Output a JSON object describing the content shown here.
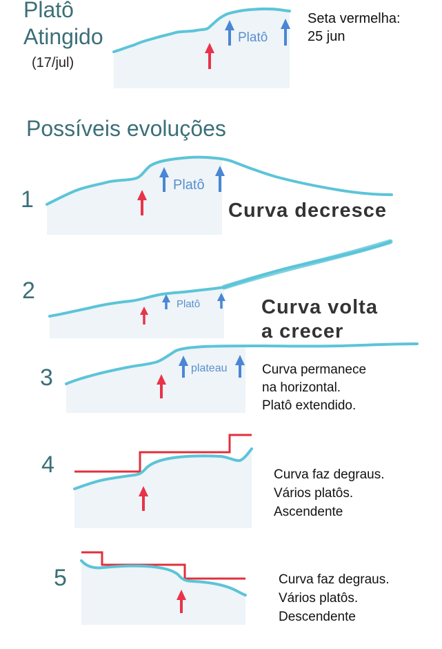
{
  "top": {
    "title_line1": "Platô",
    "title_line2": "Atingido",
    "date": "(17/jul)",
    "legend_line1": "Seta vermelha:",
    "legend_line2": "25 jun",
    "curve_label": "Platô"
  },
  "heading": "Possíveis evoluções",
  "evolutions": [
    {
      "number": "1",
      "label": "Platô",
      "desc_line1": "Curva decresce"
    },
    {
      "number": "2",
      "label": "Platô",
      "desc_line1": "Curva volta",
      "desc_line2": "a crecer"
    },
    {
      "number": "3",
      "label": "plateau",
      "desc_line1": "Curva permanece",
      "desc_line2": "na horizontal.",
      "desc_line3": "Platô extendido."
    },
    {
      "number": "4",
      "desc_line1": "Curva faz degraus.",
      "desc_line2": "Vários platôs.",
      "desc_line3": "Ascendente"
    },
    {
      "number": "5",
      "desc_line1": "Curva faz degraus.",
      "desc_line2": "Vários platôs.",
      "desc_line3": "Descendente"
    }
  ],
  "colors": {
    "curve": "#5cc4d8",
    "fill": "#eef4f7",
    "red_arrow": "#e8334a",
    "blue_arrow": "#4a86d4",
    "step_line": "#e0303c",
    "heading": "#3b6f78"
  }
}
